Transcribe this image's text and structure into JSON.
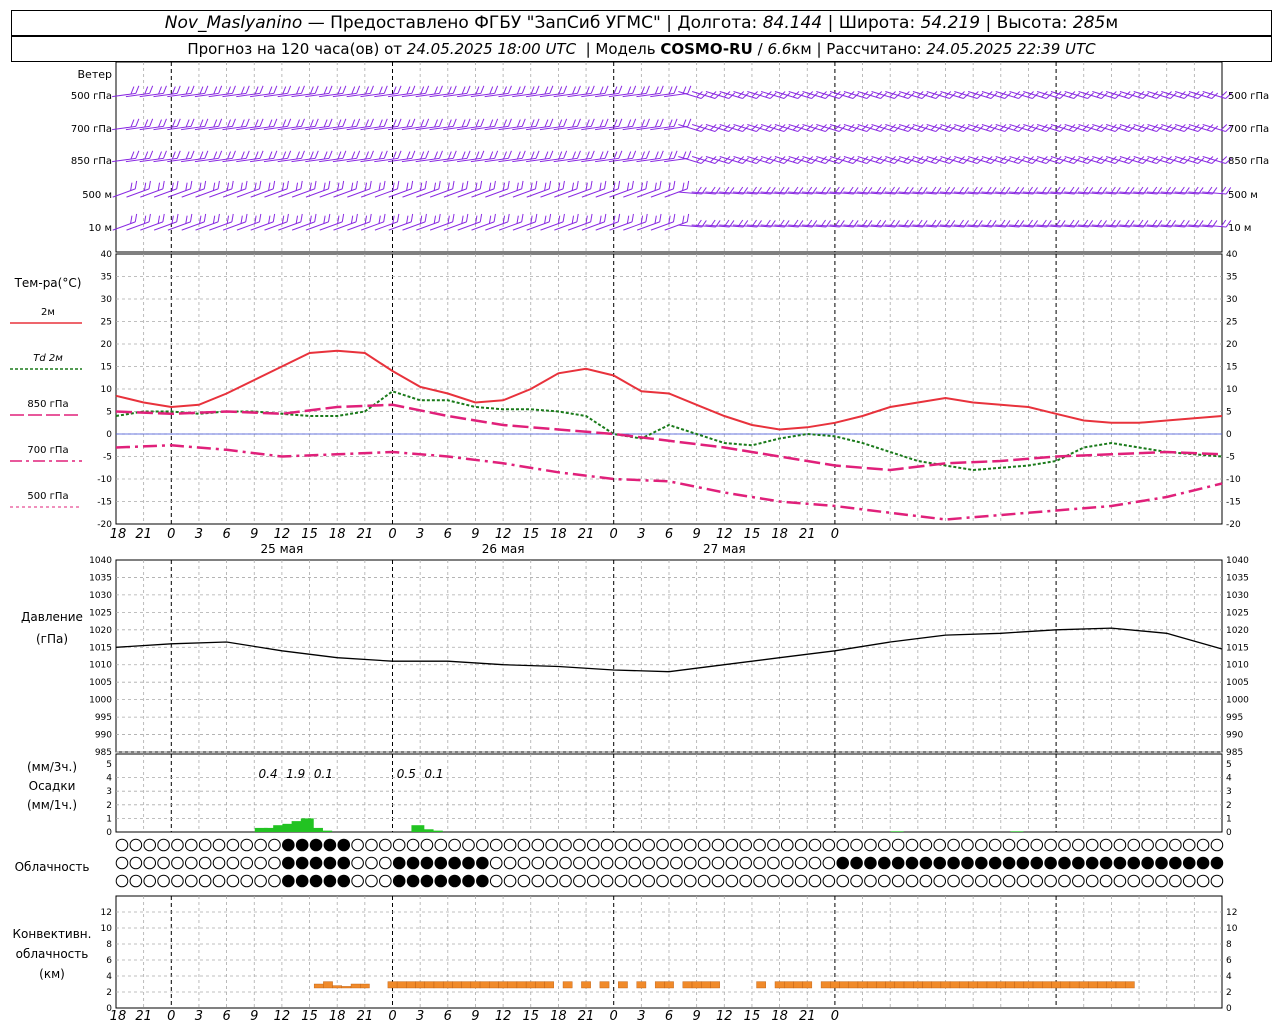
{
  "header": {
    "station": "Nov_Maslyanino",
    "provider": "— Предоставлено ФГБУ \"ЗапСиб УГМС\"",
    "lon_label": "Долгота:",
    "lon_value": "84.144",
    "lat_label": "Широта:",
    "lat_value": "54.219",
    "alt_label": "Высота:",
    "alt_value": "285",
    "alt_unit": "м",
    "fc_label": "Прогноз на 120 часа(ов) от",
    "fc_time": "24.05.2025 18:00 UTC",
    "model_label": "Модель",
    "model_name": "COSMO-RU",
    "model_res": "6.6",
    "model_unit": "км",
    "calc_label": "Рассчитано:",
    "calc_time": "24.05.2025 22:39 UTC"
  },
  "wind_panel": {
    "title": "Ветер",
    "levels": [
      "500 гПа",
      "700 гПа",
      "850 гПа",
      "500 м",
      "10 м"
    ],
    "barb_color": "#8a2be2"
  },
  "temperature_panel": {
    "title": "Тем-ра(°С)",
    "yticks": [
      40,
      35,
      30,
      25,
      20,
      15,
      10,
      5,
      0,
      -5,
      -10,
      -15,
      -20
    ],
    "legend": [
      {
        "label": "2м",
        "color": "#e8323c"
      },
      {
        "label": "Td 2м",
        "color": "#1a7a1a"
      },
      {
        "label": "850 гПа",
        "color": "#e0207a"
      },
      {
        "label": "700 гПа",
        "color": "#e0207a"
      },
      {
        "label": "500 гПа",
        "color": "#e0207a"
      }
    ],
    "hour_ticks": [
      "18",
      "21",
      "0",
      "3",
      "6",
      "9",
      "12",
      "15",
      "18",
      "21",
      "0",
      "3",
      "6",
      "9",
      "12",
      "15",
      "18",
      "21",
      "0",
      "3",
      "6",
      "9",
      "12",
      "15",
      "18",
      "21",
      "0"
    ],
    "day_labels": [
      "25 мая",
      "26 мая",
      "27 мая"
    ]
  },
  "pressure_panel": {
    "title_line1": "Давление",
    "title_line2": "(гПа)",
    "yticks": [
      1040,
      1035,
      1030,
      1025,
      1020,
      1015,
      1010,
      1005,
      1000,
      995,
      990,
      985
    ]
  },
  "precip_panel": {
    "unit_3h": "(мм/3ч.)",
    "title": "Осадки",
    "unit_1h": "(мм/1ч.)",
    "yticks": [
      5,
      4,
      3,
      2,
      1,
      0
    ],
    "totals": [
      {
        "hour": 16.5,
        "label": "0.4"
      },
      {
        "hour": 19.5,
        "label": "1.9"
      },
      {
        "hour": 22.5,
        "label": "0.1"
      },
      {
        "hour": 31.5,
        "label": "0.5"
      },
      {
        "hour": 34.5,
        "label": "0.1"
      }
    ],
    "bar_color": "#22c322"
  },
  "cloud_panel": {
    "title": "Облачность"
  },
  "convective_panel": {
    "title_line1": "Конвективн.",
    "title_line2": "облачность",
    "title_line3": "(км)",
    "yticks": [
      12,
      10,
      8,
      6,
      4,
      2,
      0
    ],
    "bar_color": "#f08a2a"
  },
  "chart_data": {
    "type": "line",
    "x_unit": "hours from 24.05.2025 18:00 UTC",
    "xlim": [
      0,
      120
    ],
    "series": [
      {
        "name": "2м",
        "x": [
          0,
          3,
          6,
          9,
          12,
          15,
          18,
          21,
          24,
          27,
          30,
          33,
          36,
          39,
          42,
          45,
          48,
          51,
          54,
          57,
          60,
          63,
          66,
          69,
          72,
          75,
          78,
          81,
          84,
          87,
          90,
          93,
          96,
          99,
          102,
          105,
          108,
          111,
          114,
          117,
          120
        ],
        "values": [
          8.5,
          7,
          6,
          6.5,
          9,
          12,
          15,
          18,
          18.5,
          18,
          14,
          10.5,
          9,
          7,
          7.5,
          10,
          13.5,
          14.5,
          13,
          9.5,
          9,
          6.5,
          4,
          2,
          1,
          1.5,
          2.5,
          4,
          6,
          7,
          8,
          7,
          6.5,
          6,
          4.5,
          3,
          2.5,
          2.5,
          3,
          3.5,
          4
        ]
      },
      {
        "name": "Td 2м",
        "x": [
          0,
          3,
          6,
          9,
          12,
          15,
          18,
          21,
          24,
          27,
          30,
          33,
          36,
          39,
          42,
          45,
          48,
          51,
          54,
          57,
          60,
          63,
          66,
          69,
          72,
          75,
          78,
          81,
          84,
          87,
          90,
          93,
          96,
          99,
          102,
          105,
          108,
          111,
          114,
          117,
          120
        ],
        "values": [
          4,
          5,
          5,
          4.5,
          5,
          5,
          4.5,
          4,
          4,
          5,
          9.5,
          7.5,
          7.5,
          6,
          5.5,
          5.5,
          5,
          4,
          0,
          -1,
          2,
          0,
          -2,
          -2.5,
          -1,
          0,
          -0.5,
          -2,
          -4,
          -6,
          -7,
          -8,
          -7.5,
          -7,
          -6,
          -3,
          -2,
          -3,
          -4,
          -4.5,
          -5
        ]
      },
      {
        "name": "850 гПа",
        "x": [
          0,
          6,
          12,
          18,
          24,
          30,
          36,
          42,
          48,
          54,
          60,
          66,
          72,
          78,
          84,
          90,
          96,
          102,
          108,
          114,
          120
        ],
        "values": [
          5,
          4.5,
          5,
          4.5,
          6,
          6.5,
          4,
          2,
          1,
          0,
          -1.5,
          -3,
          -5,
          -7,
          -8,
          -6.5,
          -6,
          -5,
          -4.5,
          -4,
          -4.5
        ]
      },
      {
        "name": "700 гПа",
        "x": [
          0,
          6,
          12,
          18,
          24,
          30,
          36,
          42,
          48,
          54,
          60,
          66,
          72,
          78,
          84,
          90,
          96,
          102,
          108,
          114,
          120
        ],
        "values": [
          -3,
          -2.5,
          -3.5,
          -5,
          -4.5,
          -4,
          -5,
          -6.5,
          -8.5,
          -10,
          -10.5,
          -13,
          -15,
          -16,
          -17.5,
          -19,
          -18,
          -17,
          -16,
          -14,
          -11
        ]
      },
      {
        "name": "Давление",
        "x": [
          0,
          6,
          12,
          18,
          24,
          30,
          36,
          42,
          48,
          54,
          60,
          66,
          72,
          78,
          84,
          90,
          96,
          102,
          108,
          114,
          120
        ],
        "values": [
          1015,
          1016,
          1016.5,
          1014,
          1012,
          1011,
          1011,
          1010,
          1009.5,
          1008.5,
          1008,
          1010,
          1012,
          1014,
          1016.5,
          1018.5,
          1019,
          1020,
          1020.5,
          1019,
          1014.5
        ]
      }
    ],
    "precip_1h": {
      "x": [
        15.5,
        16.5,
        17.5,
        18.5,
        19.5,
        20.5,
        21.5,
        22.5,
        32.5,
        33.5,
        34.5,
        84.5,
        97.5
      ],
      "values": [
        0.3,
        0.3,
        0.5,
        0.6,
        0.8,
        1.0,
        0.3,
        0.1,
        0.5,
        0.2,
        0.1,
        0.05,
        0.05
      ]
    },
    "convective": {
      "x": [
        22,
        23,
        24,
        25,
        26,
        27,
        28,
        29,
        30,
        31,
        32,
        33,
        34,
        35,
        36,
        37,
        38,
        39,
        40,
        41,
        42,
        43,
        44,
        45,
        46,
        47,
        49,
        51,
        53,
        55,
        57,
        59,
        60,
        62,
        63,
        64,
        65,
        70,
        72,
        73,
        74,
        75,
        77,
        78,
        79,
        80,
        81,
        82,
        83,
        84,
        85,
        86,
        87,
        88,
        89,
        90,
        91,
        92,
        93,
        94,
        95,
        96,
        97,
        98,
        99,
        100,
        101,
        102,
        103,
        104,
        105,
        106,
        107,
        108,
        109,
        110
      ],
      "base": [
        2.5,
        2.5,
        2.5,
        2.5,
        2.5,
        2.5,
        2.5,
        2.5,
        2.5,
        2.5,
        2.5,
        2.5,
        2.5,
        2.5,
        2.5,
        2.5,
        2.5,
        2.5,
        2.5,
        2.5,
        2.5,
        2.5,
        2.5,
        2.5,
        2.5,
        2.5,
        2.5,
        2.5,
        2.5,
        2.5,
        2.5,
        2.5,
        2.5,
        2.5,
        2.5,
        2.5,
        2.5,
        2.5,
        2.5,
        2.5,
        2.5,
        2.5,
        2.5,
        2.5,
        2.5,
        2.5,
        2.5,
        2.5,
        2.5,
        2.5,
        2.5,
        2.5,
        2.5,
        2.5,
        2.5,
        2.5,
        2.5,
        2.5,
        2.5,
        2.5,
        2.5,
        2.5,
        2.5,
        2.5,
        2.5,
        2.5,
        2.5,
        2.5,
        2.5,
        2.5,
        2.5,
        2.5,
        2.5,
        2.5,
        2.5,
        2.5
      ],
      "top": [
        3,
        3.3,
        2.8,
        2.7,
        3,
        3,
        2.5,
        2.5,
        3.3,
        3.3,
        3.3,
        3.3,
        3.3,
        3.3,
        3.3,
        3.3,
        3.3,
        3.3,
        3.3,
        3.3,
        3.3,
        3.3,
        3.3,
        3.3,
        3.3,
        3.3,
        3.3,
        3.3,
        3.3,
        3.3,
        3.3,
        3.3,
        3.3,
        3.3,
        3.3,
        3.3,
        3.3,
        3.3,
        3.3,
        3.3,
        3.3,
        3.3,
        3.3,
        3.3,
        3.3,
        3.3,
        3.3,
        3.3,
        3.3,
        3.3,
        3.3,
        3.3,
        3.3,
        3.3,
        3.3,
        3.3,
        3.3,
        3.3,
        3.3,
        3.3,
        3.3,
        3.3,
        3.3,
        3.3,
        3.3,
        3.3,
        3.3,
        3.3,
        3.3,
        3.3,
        3.3,
        3.3,
        3.3,
        3.3,
        3.3,
        3.3
      ]
    }
  }
}
